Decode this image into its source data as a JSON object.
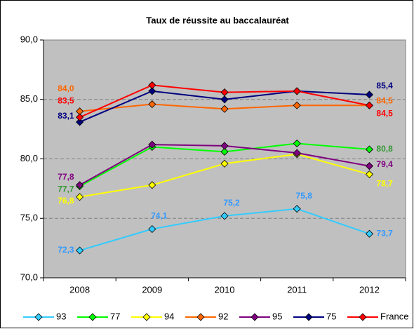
{
  "chart_data": {
    "type": "line",
    "title": "Taux de réussite au baccalauréat",
    "categories": [
      "2008",
      "2009",
      "2010",
      "2011",
      "2012"
    ],
    "ylim": [
      70,
      90
    ],
    "yticks": [
      {
        "value": 70,
        "label": "70,0"
      },
      {
        "value": 75,
        "label": "75,0"
      },
      {
        "value": 80,
        "label": "80,0"
      },
      {
        "value": 85,
        "label": "85,0"
      },
      {
        "value": 90,
        "label": "90,0"
      }
    ],
    "grid": true,
    "legend": "bottom",
    "series": [
      {
        "name": "93",
        "color": "#33ccff",
        "label_color": "#3399ff",
        "values": [
          72.3,
          74.1,
          75.2,
          75.8,
          73.7
        ],
        "value_labels": [
          "72,3",
          "74,1",
          "75,2",
          "75,8",
          "73,7"
        ]
      },
      {
        "name": "77",
        "color": "#00ff00",
        "label_color": "#339933",
        "values": [
          77.7,
          81.0,
          80.6,
          81.3,
          80.8
        ],
        "value_labels": [
          "77,7",
          null,
          null,
          null,
          "80,8"
        ]
      },
      {
        "name": "94",
        "color": "#ffff00",
        "label_color": "#ffff00",
        "values": [
          76.8,
          77.8,
          79.6,
          80.4,
          78.7
        ],
        "value_labels": [
          "76,8",
          null,
          null,
          null,
          "78,7"
        ]
      },
      {
        "name": "92",
        "color": "#ff6600",
        "label_color": "#ff6600",
        "values": [
          84.0,
          84.6,
          84.2,
          84.5,
          84.5
        ],
        "value_labels": [
          "84,0",
          null,
          null,
          null,
          "84,5"
        ]
      },
      {
        "name": "95",
        "color": "#800080",
        "label_color": "#800080",
        "values": [
          77.8,
          81.2,
          81.1,
          80.5,
          79.4
        ],
        "value_labels": [
          "77,8",
          null,
          null,
          null,
          "79,4"
        ]
      },
      {
        "name": "75",
        "color": "#000080",
        "label_color": "#000080",
        "values": [
          83.1,
          85.7,
          85.0,
          85.7,
          85.4
        ],
        "value_labels": [
          "83,1",
          null,
          null,
          null,
          "85,4"
        ]
      },
      {
        "name": "France",
        "color": "#ff0000",
        "label_color": "#ff0000",
        "values": [
          83.5,
          86.2,
          85.6,
          85.7,
          84.5
        ],
        "value_labels": [
          "83,5",
          null,
          null,
          null,
          "84,5"
        ]
      }
    ]
  }
}
